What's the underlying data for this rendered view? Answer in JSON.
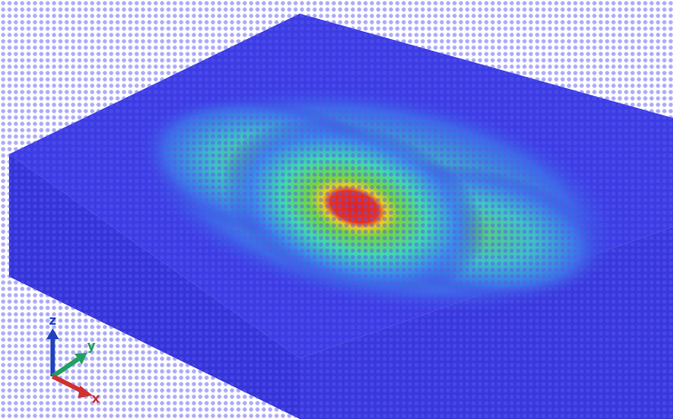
{
  "axis_labels": {
    "z": "z",
    "y": "y",
    "x": "x"
  }
}
